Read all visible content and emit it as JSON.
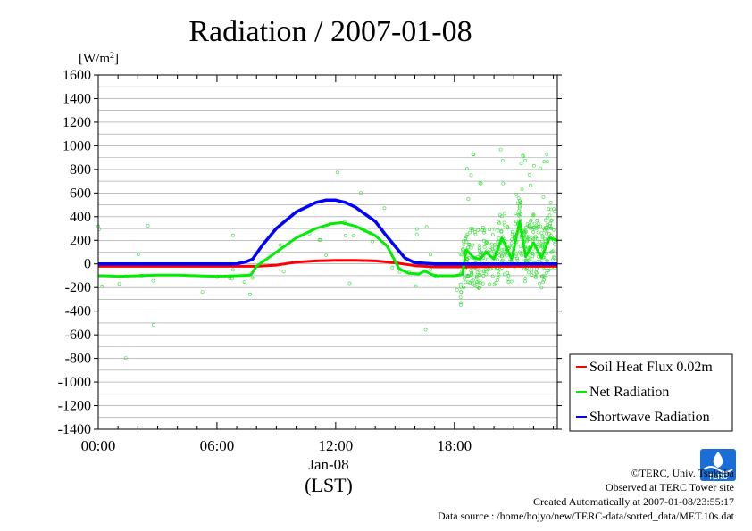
{
  "chart_data": {
    "type": "line",
    "title": "Radiation / 2007-01-08",
    "ylabel_unit": "[W/m",
    "ylabel_unit_sup": "2",
    "ylabel_unit_end": "]",
    "ylim": [
      -1400,
      1600
    ],
    "ytick_step": 200,
    "yticks_labeled": [
      1600,
      1400,
      1200,
      1000,
      800,
      600,
      400,
      200,
      0,
      -200,
      -400,
      -600,
      -800,
      -1000,
      -1200,
      -1400
    ],
    "xlim": [
      0,
      23.2
    ],
    "xticks": [
      {
        "value": 0,
        "label": "00:00"
      },
      {
        "value": 6,
        "label": "06:00"
      },
      {
        "value": 12,
        "label": "12:00"
      },
      {
        "value": 18,
        "label": "18:00"
      }
    ],
    "xlabel_date": "Jan-08",
    "xlabel": "(LST)",
    "series": [
      {
        "name": "Soil Heat Flux 0.02m",
        "color": "#ff0000",
        "x": [
          0,
          2,
          4,
          6,
          8,
          9,
          10,
          11,
          12,
          13,
          14,
          15,
          16,
          17,
          18,
          19,
          20,
          21,
          22,
          23.2
        ],
        "values": [
          -20,
          -20,
          -20,
          -20,
          -20,
          -10,
          15,
          25,
          30,
          30,
          25,
          10,
          -15,
          -25,
          -25,
          -25,
          -20,
          -20,
          -20,
          -20
        ]
      },
      {
        "name": "Net Radiation",
        "color": "#00ee00",
        "x": [
          0,
          0.3,
          1,
          2,
          3,
          4,
          5,
          6,
          7,
          7.7,
          8,
          9,
          10,
          11,
          11.8,
          12.3,
          13,
          14,
          14.6,
          15.2,
          15.7,
          16.2,
          16.5,
          17,
          17.5,
          18,
          18.4,
          18.6,
          19,
          19.3,
          19.6,
          20,
          20.4,
          20.9,
          21.3,
          21.6,
          22,
          22.4,
          22.8,
          23.2
        ],
        "values": [
          -100,
          -100,
          -105,
          -100,
          -95,
          -95,
          -100,
          -105,
          -100,
          -95,
          -20,
          100,
          220,
          300,
          340,
          350,
          320,
          240,
          150,
          -40,
          -80,
          -85,
          -60,
          -100,
          -100,
          -100,
          -90,
          120,
          50,
          40,
          100,
          40,
          220,
          40,
          360,
          60,
          180,
          50,
          220,
          200
        ]
      },
      {
        "name": "Shortwave Radiation",
        "color": "#0000ff",
        "x": [
          0,
          2,
          4,
          6,
          7,
          7.5,
          7.8,
          8.3,
          9,
          10,
          11,
          11.5,
          12,
          12.5,
          13,
          14,
          14.5,
          15,
          15.5,
          16,
          17,
          18,
          19,
          20,
          21,
          22,
          23.2
        ],
        "values": [
          0,
          0,
          0,
          0,
          0,
          20,
          40,
          160,
          300,
          440,
          520,
          540,
          540,
          520,
          480,
          360,
          250,
          150,
          50,
          10,
          0,
          0,
          0,
          0,
          0,
          0,
          0
        ]
      }
    ],
    "scatter_note": "Net Radiation raw samples (green circles) scattered around the line, dense after 18:00",
    "legend": {
      "position": "bottom-right"
    }
  },
  "credits": {
    "org": "©TERC, Univ. Tsukuba",
    "site": "Observed at TERC Tower site",
    "created": "Created Automatically at 2007-01-08/23:55:17",
    "source": "Data source : /home/hojyo/new/TERC-data/sorted_data/MET.10s.dat",
    "logo_text": "TERC"
  },
  "colors": {
    "grid": "#999999",
    "scatter": "#33dd33"
  }
}
